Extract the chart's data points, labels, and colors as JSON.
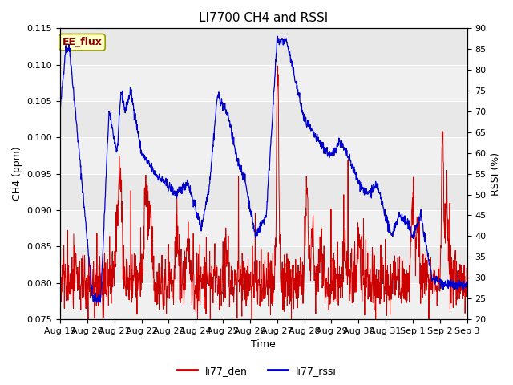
{
  "title": "LI7700 CH4 and RSSI",
  "ylabel_left": "CH4 (ppm)",
  "ylabel_right": "RSSI (%)",
  "xlabel": "Time",
  "ylim_left": [
    0.075,
    0.115
  ],
  "ylim_right": [
    20,
    90
  ],
  "yticks_left": [
    0.075,
    0.08,
    0.085,
    0.09,
    0.095,
    0.1,
    0.105,
    0.11,
    0.115
  ],
  "yticks_right": [
    20,
    25,
    30,
    35,
    40,
    45,
    50,
    55,
    60,
    65,
    70,
    75,
    80,
    85,
    90
  ],
  "xtick_labels": [
    "Aug 19",
    "Aug 20",
    "Aug 21",
    "Aug 22",
    "Aug 23",
    "Aug 24",
    "Aug 25",
    "Aug 26",
    "Aug 27",
    "Aug 28",
    "Aug 29",
    "Aug 30",
    "Aug 31",
    "Sep 1",
    "Sep 2",
    "Sep 3"
  ],
  "color_ch4": "#cc0000",
  "color_rssi": "#0000cc",
  "legend_entries": [
    "li77_den",
    "li77_rssi"
  ],
  "annotation_text": "EE_flux",
  "bg_color": "#e8e8e8",
  "fig_color": "#ffffff",
  "title_fontsize": 11,
  "axis_fontsize": 9,
  "tick_fontsize": 8,
  "legend_fontsize": 9
}
